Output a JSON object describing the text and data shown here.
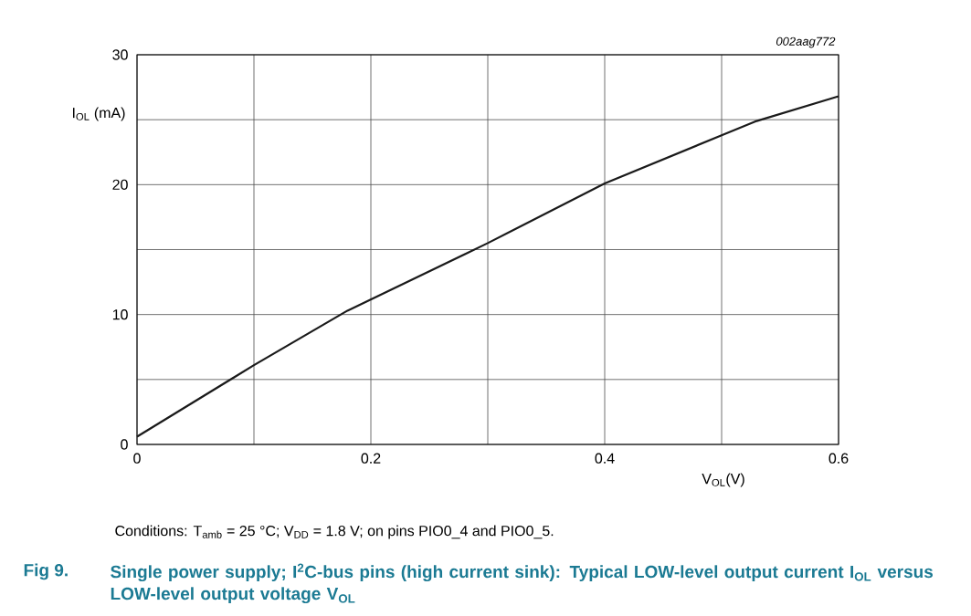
{
  "chart_data": {
    "type": "line",
    "title": "Single power supply; I$^{2}$C-bus pins (high current sink): Typical LOW-level output current I$_{OL}$ versus LOW-level output voltage V$_{OL}$",
    "xlabel": "V$_{OL}$(V)",
    "ylabel": "I$_{OL}$ (mA)",
    "annotations": [
      "002aag772",
      "Conditions: T$_{amb}$ = 25 °C; V$_{DD}$ = 1.8 V; on pins PIO0_4 and PIO0_5.",
      "Fig 9."
    ],
    "x": [
      0,
      0.1,
      0.18,
      0.3,
      0.4,
      0.5,
      0.53,
      0.6
    ],
    "series": [
      {
        "color": "#1a1a1a",
        "values": [
          0.6,
          6.1,
          10.3,
          15.5,
          20.1,
          23.8,
          24.9,
          26.8
        ]
      }
    ],
    "xlim": [
      0,
      0.6
    ],
    "ylim": [
      0,
      30
    ],
    "xticks": [
      0,
      {
        "value": 0.1,
        "label": null
      },
      0.2,
      {
        "value": 0.3,
        "label": null
      },
      0.4,
      {
        "value": 0.5,
        "label": null
      },
      0.6
    ],
    "yticks": [
      0,
      {
        "value": 5,
        "label": null
      },
      10,
      {
        "value": 15,
        "label": null
      },
      20,
      {
        "value": 25,
        "label": null
      },
      30
    ],
    "grid": true
  }
}
